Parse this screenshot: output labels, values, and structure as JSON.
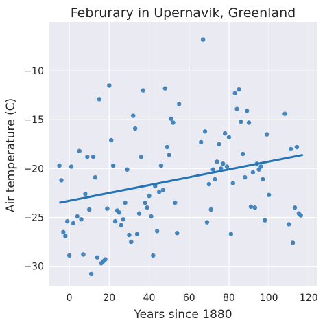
{
  "chart_data": {
    "type": "scatter",
    "title": "Februrary in Upernavik, Greenland",
    "xlabel": "Years since 1880",
    "ylabel": "Air temperature (C)",
    "xlim": [
      -10,
      124
    ],
    "ylim": [
      -32,
      -5
    ],
    "xticks": [
      0,
      20,
      40,
      60,
      80,
      100,
      120
    ],
    "yticks": [
      -30,
      -25,
      -20,
      -15,
      -10
    ],
    "grid": true,
    "colors": {
      "background": "#eaeaf2",
      "grid": "#ffffff",
      "points": "#3a80b8",
      "trend": "#2473b5"
    },
    "points": [
      [
        -5,
        -19.7
      ],
      [
        -4,
        -21.2
      ],
      [
        -3,
        -26.5
      ],
      [
        -2,
        -26.9
      ],
      [
        -1,
        -25.4
      ],
      [
        0,
        -28.9
      ],
      [
        1,
        -19.8
      ],
      [
        2,
        -25.6
      ],
      [
        4,
        -24.9
      ],
      [
        5,
        -18.2
      ],
      [
        6,
        -25.2
      ],
      [
        7,
        -28.8
      ],
      [
        8,
        -22.6
      ],
      [
        9,
        -18.8
      ],
      [
        10,
        -24.2
      ],
      [
        11,
        -30.8
      ],
      [
        12,
        -18.8
      ],
      [
        13,
        -20.9
      ],
      [
        14,
        -29.1
      ],
      [
        15,
        -12.9
      ],
      [
        16,
        -29.7
      ],
      [
        17,
        -29.5
      ],
      [
        18,
        -29.3
      ],
      [
        19,
        -24.1
      ],
      [
        20,
        -11.5
      ],
      [
        21,
        -17.1
      ],
      [
        22,
        -19.7
      ],
      [
        23,
        -25.4
      ],
      [
        24,
        -24.3
      ],
      [
        25,
        -24.5
      ],
      [
        26,
        -25.8
      ],
      [
        27,
        -25.2
      ],
      [
        28,
        -23.5
      ],
      [
        29,
        -20.1
      ],
      [
        30,
        -26.8
      ],
      [
        31,
        -27.5
      ],
      [
        32,
        -14.6
      ],
      [
        33,
        -15.9
      ],
      [
        34,
        -26.7
      ],
      [
        35,
        -24.6
      ],
      [
        36,
        -18.8
      ],
      [
        37,
        -12.0
      ],
      [
        38,
        -23.5
      ],
      [
        39,
        -24.0
      ],
      [
        40,
        -22.8
      ],
      [
        41,
        -24.9
      ],
      [
        42,
        -28.9
      ],
      [
        43,
        -21.8
      ],
      [
        44,
        -26.4
      ],
      [
        45,
        -22.4
      ],
      [
        46,
        -19.7
      ],
      [
        47,
        -22.2
      ],
      [
        48,
        -11.8
      ],
      [
        49,
        -17.8
      ],
      [
        50,
        -18.6
      ],
      [
        51,
        -14.9
      ],
      [
        52,
        -15.3
      ],
      [
        53,
        -23.5
      ],
      [
        54,
        -26.6
      ],
      [
        55,
        -13.4
      ],
      [
        67,
        -6.8
      ],
      [
        66,
        -17.3
      ],
      [
        68,
        -16.2
      ],
      [
        69,
        -25.5
      ],
      [
        70,
        -21.6
      ],
      [
        71,
        -24.2
      ],
      [
        72,
        -20.1
      ],
      [
        73,
        -21.1
      ],
      [
        74,
        -19.3
      ],
      [
        75,
        -17.5
      ],
      [
        76,
        -20.0
      ],
      [
        77,
        -19.5
      ],
      [
        78,
        -16.4
      ],
      [
        79,
        -19.8
      ],
      [
        80,
        -16.8
      ],
      [
        81,
        -26.7
      ],
      [
        82,
        -21.5
      ],
      [
        83,
        -12.3
      ],
      [
        84,
        -13.9
      ],
      [
        85,
        -11.9
      ],
      [
        86,
        -15.2
      ],
      [
        87,
        -18.5
      ],
      [
        88,
        -20.9
      ],
      [
        89,
        -14.1
      ],
      [
        90,
        -15.3
      ],
      [
        91,
        -23.9
      ],
      [
        92,
        -20.4
      ],
      [
        93,
        -24.0
      ],
      [
        94,
        -19.5
      ],
      [
        95,
        -20.1
      ],
      [
        96,
        -19.8
      ],
      [
        97,
        -21.1
      ],
      [
        98,
        -25.3
      ],
      [
        99,
        -16.5
      ],
      [
        100,
        -22.7
      ],
      [
        108,
        -14.4
      ],
      [
        110,
        -25.7
      ],
      [
        111,
        -18.0
      ],
      [
        112,
        -27.6
      ],
      [
        113,
        -24.0
      ],
      [
        114,
        -17.8
      ],
      [
        115,
        -24.6
      ],
      [
        116,
        -24.8
      ]
    ],
    "trend_line": {
      "x": [
        -5,
        117
      ],
      "y": [
        -23.5,
        -18.6
      ]
    }
  }
}
